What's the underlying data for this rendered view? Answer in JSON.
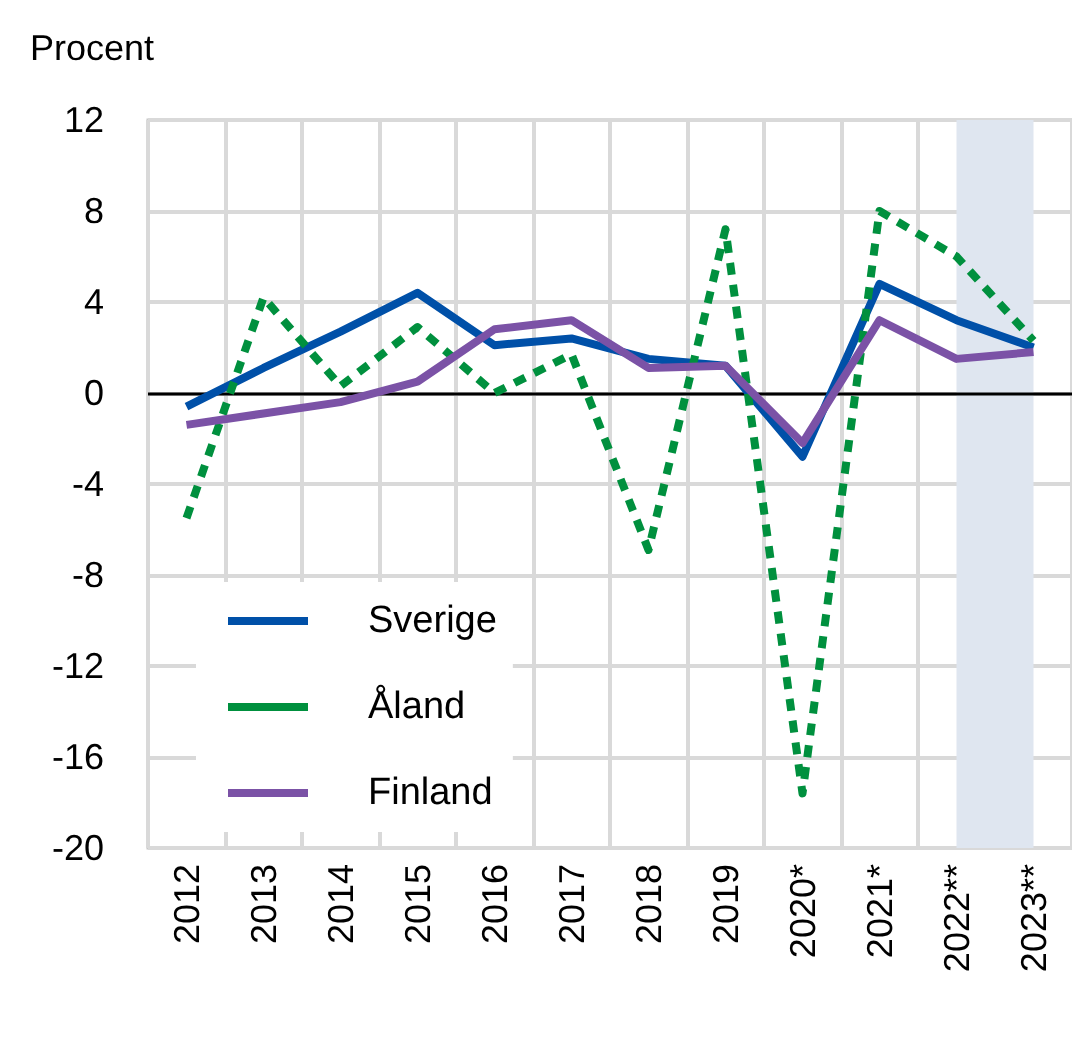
{
  "chart_data": {
    "type": "line",
    "ylabel": "Procent",
    "categories": [
      "2012",
      "2013",
      "2014",
      "2015",
      "2016",
      "2017",
      "2018",
      "2019",
      "2020*",
      "2021*",
      "2022**",
      "2023**"
    ],
    "series": [
      {
        "name": "Sverige",
        "color": "#0050a8",
        "line_style": "solid",
        "values": [
          -0.6,
          1.1,
          2.7,
          4.4,
          2.1,
          2.4,
          1.5,
          1.2,
          -2.8,
          4.8,
          3.2,
          2.0
        ]
      },
      {
        "name": "Åland",
        "color": "#00903e",
        "line_style": "dashed",
        "values": [
          -5.5,
          4.2,
          0.3,
          2.9,
          0.0,
          1.7,
          -6.9,
          7.2,
          -17.6,
          8.0,
          6.0,
          2.3
        ]
      },
      {
        "name": "Finland",
        "color": "#7b52a6",
        "line_style": "solid",
        "values": [
          -1.4,
          -0.9,
          -0.4,
          0.5,
          2.8,
          3.2,
          1.1,
          1.2,
          -2.2,
          3.2,
          1.5,
          1.8
        ]
      }
    ],
    "ylim": [
      -20,
      12
    ],
    "yticks": [
      -20,
      -16,
      -12,
      -8,
      -4,
      0,
      4,
      8,
      12
    ],
    "ref_lines": [
      {
        "axis": "y",
        "value": 0,
        "color": "#000000"
      }
    ],
    "bands": [
      {
        "axis": "x",
        "from": "2022**",
        "to": "2023**",
        "color": "#dfe6f0"
      }
    ],
    "grid": true,
    "legend": "bottom left",
    "marker": "none"
  }
}
